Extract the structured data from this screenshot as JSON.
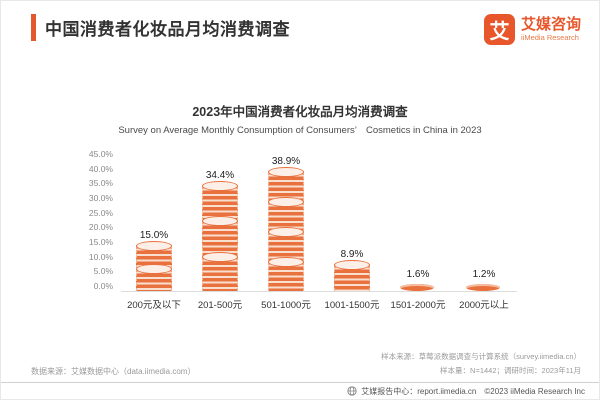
{
  "header": {
    "title": "中国消费者化妆品月均消费调查",
    "logo": {
      "mark": "艾",
      "name": "艾媒咨询",
      "subname": "iiMedia Research"
    }
  },
  "chart": {
    "title": "2023年中国消费者化妆品月均消费调查",
    "subtitle": "Survey on Average Monthly Consumption of Consumers’　Cosmetics in China in 2023"
  },
  "chart_data": {
    "type": "bar",
    "title": "2023年中国消费者化妆品月均消费调查",
    "subtitle": "Survey on Average Monthly Consumption of Consumers’ Cosmetics in China in 2023",
    "categories": [
      "200元及以下",
      "201-500元",
      "501-1000元",
      "1001-1500元",
      "1501-2000元",
      "2000元以上"
    ],
    "values": [
      15.0,
      34.4,
      38.9,
      8.9,
      1.6,
      1.2
    ],
    "value_labels": [
      "15.0%",
      "34.4%",
      "38.9%",
      "8.9%",
      "1.6%",
      "1.2%"
    ],
    "xlabel": "",
    "ylabel": "",
    "ylim": [
      0,
      45
    ],
    "yticks": [
      "45.0%",
      "40.0%",
      "35.0%",
      "30.0%",
      "25.0%",
      "20.0%",
      "15.0%",
      "10.0%",
      "5.0%",
      "0.0%"
    ],
    "grid": false,
    "legend_position": "none",
    "bar_style": "coin-stack",
    "bar_color": "#E8713E"
  },
  "sources": {
    "data_source": "数据来源：艾媒数据中心（data.iimedia.com）",
    "sample_source": "样本来源：草莓派数据调查与计算系统（survey.iimedia.cn）",
    "sample_info": "样本量：N=1442；调研时间：2023年11月"
  },
  "footer": {
    "report_center": "艾媒报告中心：report.iimedia.cn",
    "copyright": "©2023  iiMedia Research Inc"
  },
  "colors": {
    "accent": "#E2582F",
    "bar_orange": "#E8713E",
    "text_dark": "#333333",
    "text_gray": "#9A9A9A"
  }
}
